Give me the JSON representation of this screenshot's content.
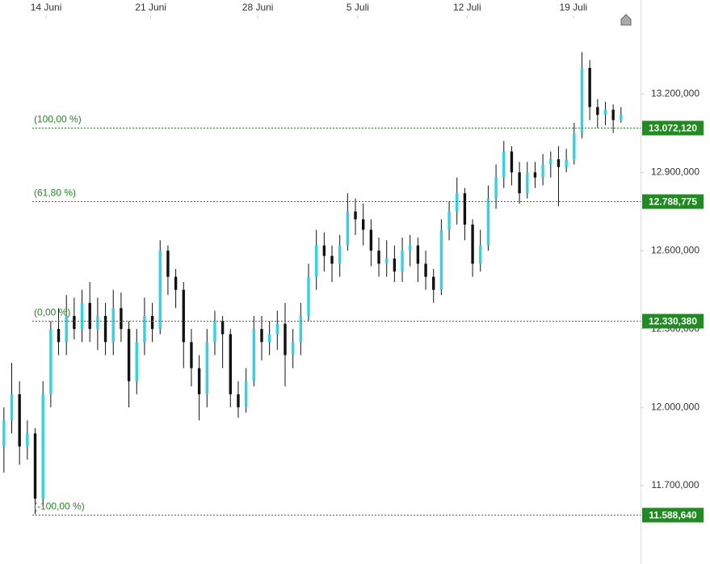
{
  "chart_data": {
    "type": "candlestick",
    "xlim": [
      -0.5,
      81.5
    ],
    "xticks": [
      {
        "value": 5.4,
        "label": "14 Juni"
      },
      {
        "value": 18.8,
        "label": "21 Juni"
      },
      {
        "value": 32.5,
        "label": "28 Juni"
      },
      {
        "value": 45.3,
        "label": "5 Juli"
      },
      {
        "value": 59.3,
        "label": "12 Juli"
      },
      {
        "value": 72.9,
        "label": "19 Juli"
      }
    ],
    "ylim": [
      11400,
      13560
    ],
    "yticks": [
      {
        "value": 11700,
        "label": "11.700,000"
      },
      {
        "value": 12000,
        "label": "12.000,000"
      },
      {
        "value": 12300,
        "label": "12.300,000"
      },
      {
        "value": 12600,
        "label": "12.600,000"
      },
      {
        "value": 12900,
        "label": "12.900,000"
      },
      {
        "value": 13200,
        "label": "13.200,000"
      }
    ],
    "up_color": "#2dd4e6",
    "down_color": "#111111",
    "level_color": "#1e8c1e",
    "open": [
      11850,
      11950,
      12050,
      11850,
      11900,
      11650,
      12050,
      12300,
      12250,
      12350,
      12300,
      12400,
      12300,
      12350,
      12250,
      12380,
      12300,
      12100,
      12250,
      12350,
      12300,
      12600,
      12500,
      12450,
      12250,
      12150,
      12050,
      12250,
      12330,
      12280,
      12050,
      12000,
      12100,
      12300,
      12250,
      12280,
      12320,
      12200,
      12250,
      12350,
      12500,
      12620,
      12580,
      12550,
      12620,
      12750,
      12720,
      12680,
      12600,
      12550,
      12570,
      12520,
      12600,
      12620,
      12550,
      12500,
      12450,
      12680,
      12750,
      12820,
      12700,
      12550,
      12620,
      12800,
      12880,
      12980,
      12900,
      12820,
      12900,
      12880,
      12930,
      12950,
      12920,
      12950,
      13050,
      13300,
      13150,
      13120,
      13140,
      13100
    ],
    "high": [
      12000,
      12170,
      12100,
      11950,
      11920,
      12100,
      12330,
      12380,
      12430,
      12420,
      12450,
      12480,
      12420,
      12400,
      12450,
      12440,
      12330,
      12300,
      12420,
      12400,
      12640,
      12620,
      12530,
      12480,
      12300,
      12200,
      12300,
      12370,
      12350,
      12300,
      12100,
      12150,
      12350,
      12350,
      12330,
      12370,
      12400,
      12300,
      12400,
      12550,
      12680,
      12670,
      12620,
      12660,
      12820,
      12800,
      12780,
      12720,
      12650,
      12640,
      12620,
      12650,
      12660,
      12650,
      12600,
      12530,
      12720,
      12790,
      12880,
      12840,
      12720,
      12680,
      12850,
      12930,
      13020,
      13000,
      12940,
      12940,
      12940,
      12970,
      12980,
      13000,
      12990,
      13090,
      13360,
      13330,
      13180,
      13170,
      13160,
      13150
    ],
    "low": [
      11750,
      11900,
      11780,
      11800,
      11590,
      11620,
      12000,
      12200,
      12200,
      12260,
      12250,
      12250,
      12220,
      12200,
      12200,
      12250,
      12000,
      12050,
      12200,
      12250,
      12280,
      12430,
      12380,
      12150,
      12080,
      11950,
      12000,
      12200,
      12150,
      12000,
      11960,
      11980,
      12080,
      12180,
      12200,
      12220,
      12080,
      12150,
      12200,
      12330,
      12450,
      12520,
      12480,
      12500,
      12600,
      12660,
      12620,
      12540,
      12500,
      12500,
      12480,
      12480,
      12540,
      12480,
      12450,
      12400,
      12430,
      12640,
      12700,
      12640,
      12500,
      12520,
      12600,
      12760,
      12840,
      12850,
      12780,
      12800,
      12840,
      12850,
      12880,
      12770,
      12900,
      12930,
      13030,
      13100,
      13070,
      13080,
      13050,
      13090
    ],
    "close": [
      11950,
      12050,
      11850,
      11900,
      11650,
      12050,
      12300,
      12250,
      12350,
      12300,
      12400,
      12300,
      12350,
      12250,
      12380,
      12300,
      12100,
      12250,
      12350,
      12300,
      12600,
      12500,
      12450,
      12250,
      12150,
      12050,
      12250,
      12330,
      12280,
      12050,
      12000,
      12100,
      12300,
      12250,
      12280,
      12320,
      12200,
      12250,
      12350,
      12500,
      12620,
      12580,
      12550,
      12620,
      12750,
      12720,
      12680,
      12600,
      12550,
      12570,
      12520,
      12600,
      12620,
      12550,
      12500,
      12450,
      12680,
      12750,
      12820,
      12700,
      12550,
      12620,
      12800,
      12880,
      12980,
      12900,
      12820,
      12900,
      12880,
      12930,
      12950,
      12920,
      12950,
      13050,
      13300,
      13150,
      13120,
      13140,
      13100,
      13120
    ],
    "levels": [
      {
        "name": "(100,00 %)",
        "value": 13072.12,
        "label": "13.072,120"
      },
      {
        "name": "(61,80 %)",
        "value": 12788.775,
        "label": "12.788,775"
      },
      {
        "name": "(0,00 %)",
        "value": 12330.38,
        "label": "12.330,380"
      },
      {
        "name": "(-100,00 %)",
        "value": 11588.64,
        "label": "11.588,640"
      }
    ]
  }
}
